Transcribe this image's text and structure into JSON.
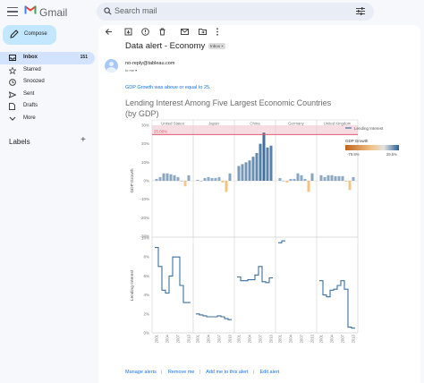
{
  "app": {
    "name": "Gmail"
  },
  "search": {
    "placeholder": "Search mail"
  },
  "compose_label": "Compose",
  "nav": {
    "inbox": {
      "label": "Inbox",
      "count": "151"
    },
    "starred": "Starred",
    "snoozed": "Snoozed",
    "sent": "Sent",
    "drafts": "Drafts",
    "more": "More"
  },
  "labels_heading": "Labels",
  "email": {
    "subject": "Data alert - Economy",
    "chip": "Inbox ×",
    "sender": "no-reply@tableau.com",
    "to": "to me ▾",
    "alert_text": "GDP Growth was above or equal to 25.",
    "links": [
      "Manage alerts",
      "Remove me",
      "Add me to this alert",
      "Edit alert"
    ]
  },
  "icons": {
    "menu": "menu-icon",
    "search": "search-icon",
    "tune": "tune-icon",
    "compose": "pencil-icon",
    "back": "back-arrow-icon",
    "archive": "archive-icon",
    "report": "report-spam-icon",
    "delete": "trash-icon",
    "unread": "mail-icon",
    "move": "move-to-icon",
    "more": "more-vert-icon"
  },
  "colors": {
    "accent": "#c2e7ff",
    "nav_active": "#d3e3fd",
    "link": "#1a73e8",
    "bar_positive": "#3f6f9c",
    "bar_negative": "#f0a43e",
    "threshold": "#e05c6f"
  },
  "chart_data": {
    "type": "bar",
    "title": "Lending Interest Among Five Largest Economic Countries (by GDP)",
    "countries": [
      "United States",
      "Japan",
      "China",
      "Germany",
      "United Kingdom"
    ],
    "x_tick_labels": [
      "2001",
      "2004",
      "2007",
      "2010"
    ],
    "threshold_label": "25.00%",
    "gdp_growth": {
      "ylabel": "GDP Growth",
      "ylim": [
        -30,
        30
      ],
      "tick_labels": [
        "30%",
        "20%",
        "10%",
        "0%",
        "-10%",
        "-20%",
        "-30%"
      ],
      "series": [
        {
          "name": "United States",
          "values": [
            1,
            2,
            4,
            4,
            3.5,
            3,
            2,
            0,
            -3,
            3
          ]
        },
        {
          "name": "Japan",
          "values": [
            0.5,
            0,
            1.5,
            2,
            1.5,
            1.5,
            2,
            -1,
            -6,
            4
          ]
        },
        {
          "name": "China",
          "values": [
            8,
            9,
            10,
            11,
            13,
            15,
            20,
            26,
            18,
            19
          ]
        },
        {
          "name": "Germany",
          "values": [
            1.5,
            0,
            -1,
            1,
            1,
            4,
            3,
            1,
            -6,
            4
          ]
        },
        {
          "name": "United Kingdom",
          "values": [
            3,
            2,
            3,
            3,
            2.5,
            2.5,
            2.5,
            -0.5,
            -5,
            2
          ]
        }
      ]
    },
    "lending_interest": {
      "ylabel": "Lending Interest",
      "ylim": [
        0,
        10
      ],
      "tick_labels": [
        "10%",
        "8%",
        "6%",
        "4%",
        "2%",
        "0%"
      ],
      "series": [
        {
          "name": "United States",
          "values": [
            9,
            7,
            4.5,
            4.2,
            6,
            8,
            8,
            5,
            3.2,
            3.2
          ]
        },
        {
          "name": "Japan",
          "values": [
            2,
            1.9,
            1.8,
            1.7,
            1.7,
            1.7,
            1.8,
            1.7,
            1.5,
            1.4
          ]
        },
        {
          "name": "China",
          "values": [
            5.9,
            5.5,
            5.5,
            5.6,
            5.6,
            6.1,
            7.0,
            5.4,
            5.3,
            5.8
          ]
        },
        {
          "name": "Germany",
          "values": [
            9.5,
            9.7
          ]
        },
        {
          "name": "United Kingdom",
          "values": [
            5.5,
            4.0,
            3.8,
            4.5,
            4.6,
            5.0,
            5.5,
            4.6,
            0.6,
            0.5
          ]
        }
      ]
    },
    "legend": {
      "title": "Lending Interest",
      "gradient_title": "GDP Growth",
      "min_label": "-79.8%",
      "max_label": "29.5%"
    }
  }
}
